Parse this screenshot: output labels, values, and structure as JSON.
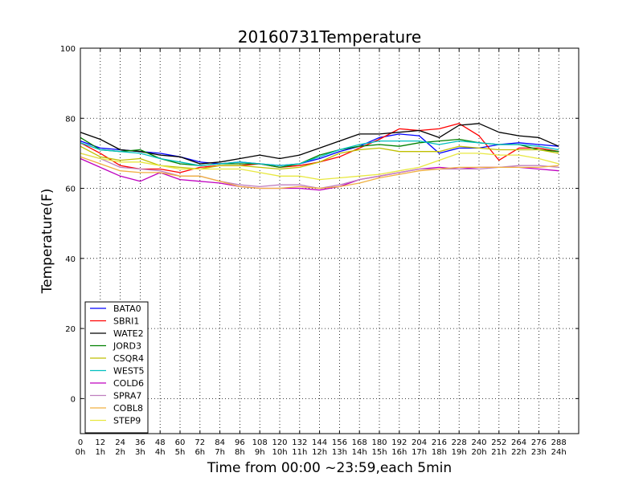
{
  "chart_data": {
    "type": "line",
    "title": "20160731Temperature",
    "xlabel": "Time from 00:00 ~23:59,each 5min",
    "ylabel": "Temperature(F)",
    "xlim": [
      0,
      300
    ],
    "ylim": [
      -10,
      100
    ],
    "xticks": [
      0,
      12,
      24,
      36,
      48,
      60,
      72,
      84,
      96,
      108,
      120,
      132,
      144,
      156,
      168,
      180,
      192,
      204,
      216,
      228,
      240,
      252,
      264,
      276,
      288
    ],
    "xtick_labels": [
      "0",
      "12",
      "24",
      "36",
      "48",
      "60",
      "72",
      "84",
      "96",
      "108",
      "120",
      "132",
      "144",
      "156",
      "168",
      "180",
      "192",
      "204",
      "216",
      "228",
      "240",
      "252",
      "264",
      "276",
      "288"
    ],
    "xtick_hour_labels": [
      "0h",
      "1h",
      "2h",
      "3h",
      "4h",
      "5h",
      "6h",
      "7h",
      "8h",
      "9h",
      "10h",
      "11h",
      "12h",
      "13h",
      "14h",
      "15h",
      "16h",
      "17h",
      "18h",
      "19h",
      "20h",
      "21h",
      "22h",
      "23h",
      "24h"
    ],
    "yticks": [
      0,
      20,
      40,
      60,
      80,
      100
    ],
    "ytick_labels": [
      "0",
      "20",
      "40",
      "60",
      "80",
      "100"
    ],
    "grid": true,
    "legend_position": "lower-left",
    "x": [
      0,
      12,
      24,
      36,
      48,
      60,
      72,
      84,
      96,
      108,
      120,
      132,
      144,
      156,
      168,
      180,
      192,
      204,
      216,
      228,
      240,
      252,
      264,
      276,
      288
    ],
    "series": [
      {
        "name": "BATA0",
        "color": "#0000ff",
        "values": [
          73.5,
          71.5,
          71.0,
          70.5,
          70.0,
          69.0,
          67.5,
          67.0,
          67.5,
          67.0,
          66.5,
          67.0,
          68.5,
          70.5,
          72.0,
          74.5,
          75.5,
          75.0,
          70.0,
          71.5,
          71.5,
          72.5,
          73.0,
          72.5,
          72.0
        ]
      },
      {
        "name": "SBRI1",
        "color": "#ff0000",
        "values": [
          73.0,
          70.0,
          66.5,
          65.5,
          65.5,
          64.5,
          66.0,
          66.5,
          66.5,
          67.0,
          66.0,
          66.5,
          67.5,
          69.0,
          71.5,
          74.0,
          77.0,
          76.5,
          77.0,
          78.5,
          75.0,
          68.0,
          71.5,
          71.5,
          70.5
        ]
      },
      {
        "name": "WATE2",
        "color": "#000000",
        "values": [
          76.0,
          74.0,
          71.0,
          70.5,
          69.5,
          69.0,
          67.0,
          67.5,
          68.5,
          69.5,
          68.5,
          69.5,
          71.5,
          73.5,
          75.5,
          75.5,
          76.0,
          76.5,
          74.5,
          78.0,
          78.5,
          76.0,
          75.0,
          74.5,
          72.0
        ]
      },
      {
        "name": "JORD3",
        "color": "#008000",
        "values": [
          74.5,
          71.0,
          70.5,
          71.0,
          68.5,
          67.0,
          66.5,
          67.0,
          67.0,
          67.0,
          66.0,
          67.0,
          69.5,
          71.0,
          72.0,
          72.5,
          72.0,
          73.0,
          73.5,
          74.0,
          73.0,
          72.5,
          72.5,
          71.0,
          70.5
        ]
      },
      {
        "name": "CSQR4",
        "color": "#bfbf00",
        "values": [
          72.0,
          69.0,
          68.0,
          68.5,
          66.5,
          66.0,
          65.5,
          66.5,
          66.5,
          66.0,
          65.5,
          66.0,
          67.5,
          70.0,
          71.0,
          71.5,
          70.5,
          70.5,
          70.5,
          72.0,
          71.5,
          71.0,
          71.0,
          71.0,
          70.0
        ]
      },
      {
        "name": "WEST5",
        "color": "#00bfbf",
        "values": [
          73.0,
          71.0,
          70.5,
          70.0,
          68.5,
          67.5,
          66.5,
          67.0,
          67.5,
          67.0,
          66.5,
          67.0,
          69.0,
          71.0,
          72.5,
          73.5,
          73.5,
          73.5,
          72.5,
          73.5,
          73.0,
          72.5,
          72.5,
          72.0,
          71.0
        ]
      },
      {
        "name": "COLD6",
        "color": "#bf00bf",
        "values": [
          68.5,
          66.0,
          63.5,
          62.0,
          64.5,
          62.5,
          62.0,
          61.5,
          60.5,
          60.0,
          60.0,
          60.0,
          59.5,
          60.5,
          62.5,
          63.5,
          64.5,
          65.5,
          66.0,
          65.5,
          66.0,
          66.0,
          66.0,
          65.5,
          65.0
        ]
      },
      {
        "name": "SPRA7",
        "color": "#bf7fbf",
        "values": [
          70.0,
          68.5,
          66.0,
          65.5,
          65.0,
          63.5,
          63.5,
          62.0,
          61.0,
          60.5,
          61.0,
          61.0,
          60.0,
          61.0,
          62.5,
          63.5,
          64.5,
          65.5,
          65.5,
          65.5,
          65.5,
          66.0,
          66.5,
          66.5,
          66.0
        ]
      },
      {
        "name": "COBL8",
        "color": "#f0b040",
        "values": [
          69.0,
          67.0,
          65.0,
          64.5,
          64.5,
          63.5,
          63.5,
          62.0,
          60.5,
          60.0,
          60.0,
          60.5,
          60.0,
          60.5,
          61.5,
          63.0,
          64.0,
          65.0,
          65.5,
          66.0,
          66.0,
          66.0,
          66.0,
          66.0,
          66.5
        ]
      },
      {
        "name": "STEP9",
        "color": "#e8e840",
        "values": [
          70.0,
          68.5,
          67.5,
          67.5,
          66.5,
          65.5,
          65.5,
          65.5,
          65.5,
          64.5,
          63.5,
          63.5,
          62.5,
          63.0,
          63.5,
          64.0,
          65.0,
          66.0,
          68.0,
          70.0,
          70.0,
          69.5,
          69.5,
          68.5,
          67.0
        ]
      }
    ]
  }
}
